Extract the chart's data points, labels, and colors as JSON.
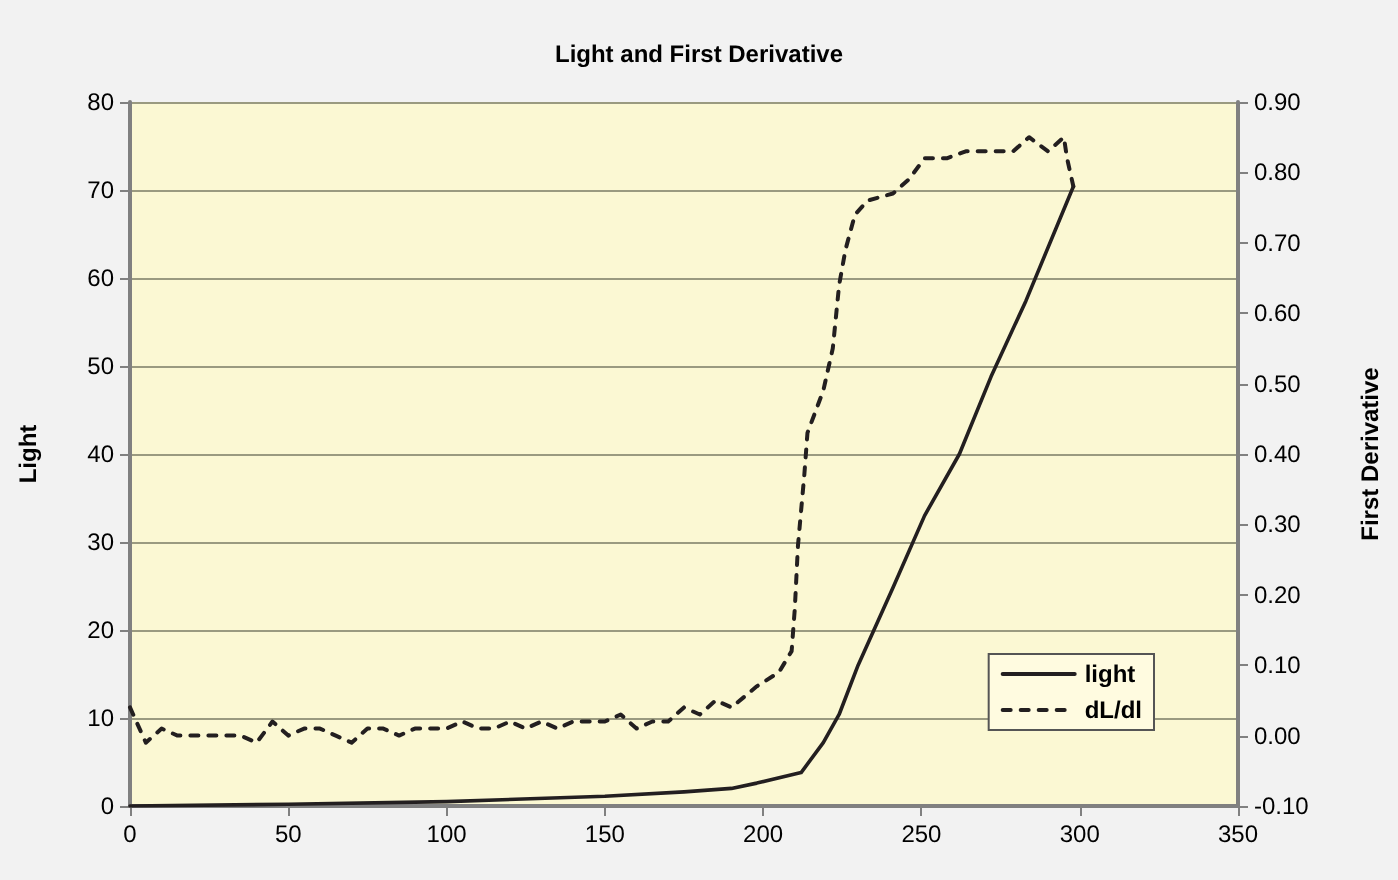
{
  "chart_data": {
    "type": "line",
    "title": "Light and First Derivative",
    "ylabel": "Light",
    "y2label": "First Derivative",
    "xlim": [
      0,
      350
    ],
    "xticks": [
      0,
      50,
      100,
      150,
      200,
      250,
      300,
      350
    ],
    "ylim": [
      0,
      80
    ],
    "yticks": [
      0,
      10,
      20,
      30,
      40,
      50,
      60,
      70,
      80
    ],
    "y2lim": [
      -0.1,
      0.9
    ],
    "y2ticks": [
      {
        "value": -0.1,
        "label": "-0.10"
      },
      {
        "value": 0,
        "label": "0.00"
      },
      {
        "value": 0.1,
        "label": "0.10"
      },
      {
        "value": 0.2,
        "label": "0.20"
      },
      {
        "value": 0.3,
        "label": "0.30"
      },
      {
        "value": 0.4,
        "label": "0.40"
      },
      {
        "value": 0.5,
        "label": "0.50"
      },
      {
        "value": 0.6,
        "label": "0.60"
      },
      {
        "value": 0.7,
        "label": "0.70"
      },
      {
        "value": 0.8,
        "label": "0.80"
      },
      {
        "value": 0.9,
        "label": "0.90"
      }
    ],
    "grid": "y",
    "legend": "bottom right",
    "marker": "none",
    "series": [
      {
        "name": "light",
        "color": "#231f20",
        "line_style": "solid",
        "x": [
          0,
          50,
          100,
          150,
          175,
          190,
          198,
          212,
          219,
          224,
          230,
          241,
          251,
          262,
          272,
          283,
          298
        ],
        "values": [
          0,
          0.2,
          0.5,
          1.1,
          1.6,
          2.0,
          2.6,
          3.8,
          7.2,
          10.4,
          16,
          24.8,
          33,
          40,
          48.8,
          57.4,
          70.4
        ]
      },
      {
        "name": "dL/dl",
        "color": "#231f20",
        "line_style": "dashed",
        "axis": "y2",
        "x": [
          0,
          5,
          10,
          15,
          20,
          25,
          30,
          35,
          40,
          45,
          50,
          55,
          60,
          65,
          70,
          75,
          80,
          85,
          90,
          95,
          100,
          105,
          110,
          115,
          120,
          125,
          130,
          135,
          140,
          145,
          150,
          155,
          160,
          165,
          170,
          175,
          180,
          185,
          190,
          198,
          205,
          209,
          210,
          211,
          213,
          214,
          219,
          222,
          224,
          226,
          229,
          233,
          241,
          246,
          251,
          258,
          264,
          271,
          279,
          284,
          290,
          295,
          296,
          298
        ],
        "values": [
          0.04,
          -0.01,
          0.01,
          0.0,
          0.0,
          0.0,
          0.0,
          0.0,
          -0.01,
          0.02,
          0.0,
          0.01,
          0.01,
          0.0,
          -0.01,
          0.01,
          0.01,
          0.0,
          0.01,
          0.01,
          0.01,
          0.02,
          0.01,
          0.01,
          0.02,
          0.01,
          0.02,
          0.01,
          0.02,
          0.02,
          0.02,
          0.03,
          0.01,
          0.02,
          0.02,
          0.04,
          0.03,
          0.05,
          0.04,
          0.07,
          0.09,
          0.12,
          0.18,
          0.27,
          0.37,
          0.43,
          0.49,
          0.55,
          0.64,
          0.69,
          0.74,
          0.76,
          0.77,
          0.79,
          0.82,
          0.82,
          0.83,
          0.83,
          0.83,
          0.85,
          0.83,
          0.85,
          0.82,
          0.78
        ]
      }
    ]
  }
}
